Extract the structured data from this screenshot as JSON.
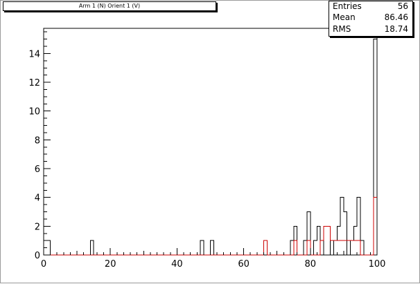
{
  "title": "Arm 1 (N) Orient 1 (V)",
  "stats": [
    {
      "label": "Entries",
      "value": "56"
    },
    {
      "label": "Mean",
      "value": "86.46"
    },
    {
      "label": "RMS",
      "value": "18.74"
    }
  ],
  "colors": {
    "series_black": "#000000",
    "series_red": "#cc0000"
  },
  "chart_data": {
    "type": "bar",
    "xlim": [
      0,
      100
    ],
    "ylim": [
      0,
      15.75
    ],
    "bin_width": 1,
    "xticks": [
      0,
      20,
      40,
      60,
      80,
      100
    ],
    "yticks": [
      0,
      2,
      4,
      6,
      8,
      10,
      12,
      14
    ],
    "tick_labels_x": [
      "0",
      "20",
      "40",
      "60",
      "80",
      "100"
    ],
    "tick_labels_y": [
      "0",
      "2",
      "4",
      "6",
      "8",
      "10",
      "12",
      "14"
    ],
    "series": [
      {
        "color": "#000000",
        "bins": [
          [
            0,
            1
          ],
          [
            1,
            1
          ],
          [
            14,
            1
          ],
          [
            47,
            1
          ],
          [
            50,
            1
          ],
          [
            66,
            1
          ],
          [
            74,
            1
          ],
          [
            75,
            2
          ],
          [
            78,
            1
          ],
          [
            79,
            3
          ],
          [
            81,
            1
          ],
          [
            82,
            2
          ],
          [
            84,
            2
          ],
          [
            85,
            2
          ],
          [
            87,
            1
          ],
          [
            88,
            2
          ],
          [
            89,
            4
          ],
          [
            90,
            3
          ],
          [
            92,
            1
          ],
          [
            93,
            2
          ],
          [
            94,
            4
          ],
          [
            95,
            1
          ],
          [
            99,
            15
          ]
        ]
      },
      {
        "color": "#cc0000",
        "bins": [
          [
            66,
            1
          ],
          [
            75,
            1
          ],
          [
            79,
            1
          ],
          [
            83,
            1
          ],
          [
            84,
            2
          ],
          [
            85,
            2
          ],
          [
            86,
            1
          ],
          [
            87,
            1
          ],
          [
            88,
            1
          ],
          [
            89,
            1
          ],
          [
            90,
            1
          ],
          [
            91,
            1
          ],
          [
            92,
            1
          ],
          [
            93,
            1
          ],
          [
            94,
            1
          ],
          [
            99,
            4
          ]
        ]
      }
    ]
  }
}
